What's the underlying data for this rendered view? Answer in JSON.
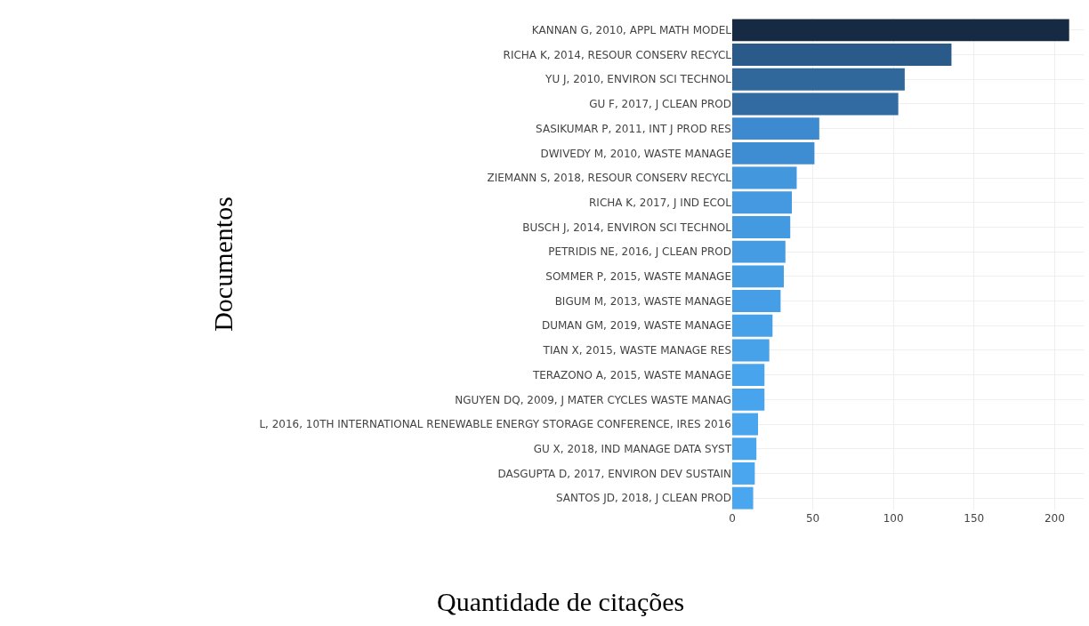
{
  "chart_data": {
    "type": "bar",
    "orientation": "horizontal",
    "xlabel": "Quantidade de citações",
    "ylabel": "Documentos",
    "categories": [
      "KANNAN G, 2010, APPL MATH MODEL",
      "RICHA K, 2014, RESOUR CONSERV RECYCL",
      "YU J, 2010, ENVIRON SCI TECHNOL",
      "GU F, 2017, J CLEAN PROD",
      "SASIKUMAR P, 2011, INT J PROD RES",
      "DWIVEDY M, 2010, WASTE MANAGE",
      "ZIEMANN S, 2018, RESOUR CONSERV RECYCL",
      "RICHA K, 2017, J IND ECOL",
      "BUSCH J, 2014, ENVIRON SCI TECHNOL",
      "PETRIDIS NE, 2016, J CLEAN PROD",
      "SOMMER P, 2015, WASTE MANAGE",
      "BIGUM M, 2013, WASTE MANAGE",
      "DUMAN GM, 2019, WASTE MANAGE",
      "TIAN X, 2015, WASTE MANAGE RES",
      "TERAZONO A, 2015, WASTE MANAGE",
      "NGUYEN DQ, 2009, J MATER CYCLES WASTE MANAG",
      "L, 2016, 10TH INTERNATIONAL RENEWABLE ENERGY STORAGE CONFERENCE, IRES 2016",
      "GU X, 2018, IND MANAGE DATA SYST",
      "DASGUPTA D, 2017, ENVIRON DEV SUSTAIN",
      "SANTOS JD, 2018, J CLEAN PROD"
    ],
    "values": [
      209,
      136,
      107,
      103,
      54,
      51,
      40,
      37,
      36,
      33,
      32,
      30,
      25,
      23,
      20,
      20,
      16,
      15,
      14,
      13
    ],
    "colors": [
      "#172a44",
      "#2a5a8a",
      "#30689c",
      "#326ba2",
      "#3d8ad0",
      "#3e8dd3",
      "#4397dd",
      "#4499e0",
      "#449ae1",
      "#459ce3",
      "#459de4",
      "#469ee6",
      "#47a1e9",
      "#47a2ea",
      "#48a4ec",
      "#48a4ec",
      "#49a5ed",
      "#49a6ee",
      "#4aa6ee",
      "#4aa7ef"
    ],
    "xlim": [
      0,
      218
    ],
    "xticks": [
      0,
      50,
      100,
      150,
      200
    ],
    "grid": true
  }
}
